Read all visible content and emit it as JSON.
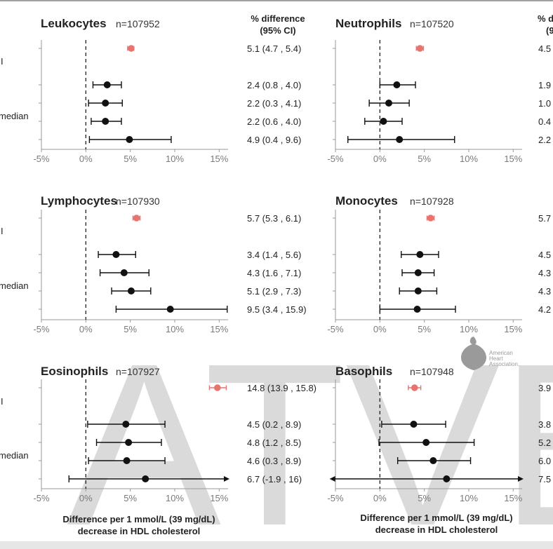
{
  "row_labels": [
    "I",
    "median"
  ],
  "column_header": {
    "left": [
      "% difference",
      "(95% CI)"
    ],
    "right": [
      "% d",
      "(9"
    ]
  },
  "x_label": [
    "Difference per 1 mmol/L (39 mg/dL)",
    "decrease in HDL cholesterol"
  ],
  "watermark": "ATVB",
  "logo": {
    "lines": [
      "American",
      "Heart",
      "Association."
    ],
    "icon": "heart-torch-icon"
  },
  "colors": {
    "highlight": "#e8736f",
    "point": "#111111",
    "axis": "#999999",
    "tick_text": "#7a7a7a"
  },
  "chart_data": [
    {
      "type": "forest",
      "title": "Leukocytes",
      "n": "n=107952",
      "x_ticks": [
        "-5%",
        "0%",
        "5%",
        "10%",
        "15%"
      ],
      "xlim": [
        -5,
        16
      ],
      "ref_line": 0,
      "rows": [
        {
          "est": 5.1,
          "lo": 4.7,
          "hi": 5.4,
          "text": "5.1 (4.7 , 5.4)",
          "highlight": true
        },
        {
          "est": 2.4,
          "lo": 0.8,
          "hi": 4.0,
          "text": "2.4 (0.8 , 4.0)"
        },
        {
          "est": 2.2,
          "lo": 0.3,
          "hi": 4.1,
          "text": "2.2 (0.3 , 4.1)"
        },
        {
          "est": 2.2,
          "lo": 0.6,
          "hi": 4.0,
          "text": "2.2 (0.6 , 4.0)"
        },
        {
          "est": 4.9,
          "lo": 0.4,
          "hi": 9.6,
          "text": "4.9 (0.4 , 9.6)"
        }
      ]
    },
    {
      "type": "forest",
      "title": "Neutrophils",
      "n": "n=107520",
      "x_ticks": [
        "-5%",
        "0%",
        "5%",
        "10%",
        "15%"
      ],
      "xlim": [
        -5,
        16
      ],
      "ref_line": 0,
      "rows": [
        {
          "est": 4.5,
          "lo": 4.1,
          "hi": 4.9,
          "text": "4.5",
          "highlight": true
        },
        {
          "est": 1.9,
          "lo": 0.0,
          "hi": 4.0,
          "text": "1.9"
        },
        {
          "est": 1.0,
          "lo": -1.2,
          "hi": 3.3,
          "text": "1.0"
        },
        {
          "est": 0.4,
          "lo": -1.7,
          "hi": 2.5,
          "text": "0.4"
        },
        {
          "est": 2.2,
          "lo": -3.6,
          "hi": 8.4,
          "text": "2.2"
        }
      ]
    },
    {
      "type": "forest",
      "title": "Lymphocytes",
      "n": "n=107930",
      "x_ticks": [
        "-5%",
        "0%",
        "5%",
        "10%",
        "15%"
      ],
      "xlim": [
        -5,
        16
      ],
      "ref_line": 0,
      "rows": [
        {
          "est": 5.7,
          "lo": 5.3,
          "hi": 6.1,
          "text": "5.7 (5.3 , 6.1)",
          "highlight": true
        },
        {
          "est": 3.4,
          "lo": 1.4,
          "hi": 5.6,
          "text": "3.4 (1.4 , 5.6)"
        },
        {
          "est": 4.3,
          "lo": 1.6,
          "hi": 7.1,
          "text": "4.3 (1.6 , 7.1)"
        },
        {
          "est": 5.1,
          "lo": 2.9,
          "hi": 7.3,
          "text": "5.1 (2.9 , 7.3)"
        },
        {
          "est": 9.5,
          "lo": 3.4,
          "hi": 15.9,
          "text": "9.5 (3.4 , 15.9)"
        }
      ]
    },
    {
      "type": "forest",
      "title": "Monocytes",
      "n": "n=107928",
      "x_ticks": [
        "-5%",
        "0%",
        "5%",
        "10%",
        "15%"
      ],
      "xlim": [
        -5,
        16
      ],
      "ref_line": 0,
      "rows": [
        {
          "est": 5.7,
          "lo": 5.3,
          "hi": 6.1,
          "text": "5.7",
          "highlight": true
        },
        {
          "est": 4.5,
          "lo": 2.4,
          "hi": 6.6,
          "text": "4.5"
        },
        {
          "est": 4.3,
          "lo": 2.5,
          "hi": 6.1,
          "text": "4.3"
        },
        {
          "est": 4.3,
          "lo": 2.2,
          "hi": 6.4,
          "text": "4.3"
        },
        {
          "est": 4.2,
          "lo": 0.0,
          "hi": 8.5,
          "text": "4.2"
        }
      ]
    },
    {
      "type": "forest",
      "title": "Eosinophils",
      "n": "n=107927",
      "x_ticks": [
        "-5%",
        "0%",
        "5%",
        "10%",
        "15%"
      ],
      "xlim": [
        -5,
        16
      ],
      "ref_line": 0,
      "rows": [
        {
          "est": 14.8,
          "lo": 13.9,
          "hi": 15.8,
          "text": "14.8 (13.9 , 15.8)",
          "highlight": true
        },
        {
          "est": 4.5,
          "lo": 0.2,
          "hi": 8.9,
          "text": "4.5 (0.2 , 8.9)"
        },
        {
          "est": 4.8,
          "lo": 1.2,
          "hi": 8.5,
          "text": "4.8 (1.2 , 8.5)"
        },
        {
          "est": 4.6,
          "lo": 0.3,
          "hi": 8.9,
          "text": "4.6 (0.3 , 8.9)"
        },
        {
          "est": 6.7,
          "lo": -1.9,
          "hi": 16,
          "text": "6.7 (-1.9 , 16)",
          "arrow": "right"
        }
      ]
    },
    {
      "type": "forest",
      "title": "Basophils",
      "n": "n=107948",
      "x_ticks": [
        "-5%",
        "0%",
        "5%",
        "10%",
        "15%"
      ],
      "xlim": [
        -5,
        16
      ],
      "ref_line": 0,
      "rows": [
        {
          "est": 3.9,
          "lo": 3.2,
          "hi": 4.6,
          "text": "3.9",
          "highlight": true
        },
        {
          "est": 3.8,
          "lo": 0.2,
          "hi": 7.4,
          "text": "3.8"
        },
        {
          "est": 5.2,
          "lo": -0.1,
          "hi": 10.6,
          "text": "5.2"
        },
        {
          "est": 6.0,
          "lo": 2.0,
          "hi": 10.2,
          "text": "6.0"
        },
        {
          "est": 7.5,
          "lo": -5.5,
          "hi": 16,
          "text": "7.5",
          "arrow": "both"
        }
      ]
    }
  ]
}
